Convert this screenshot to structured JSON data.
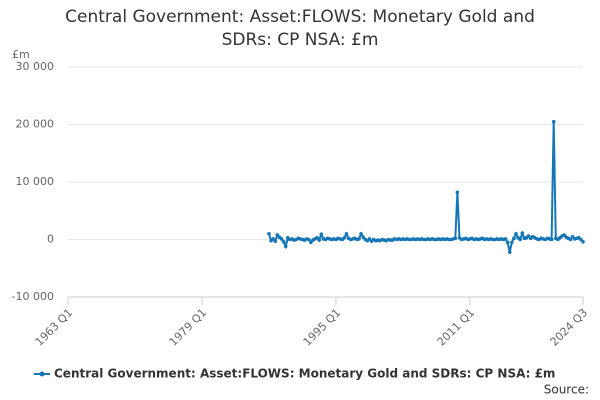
{
  "chart_data": {
    "type": "line",
    "title": "Central Government: Asset:FLOWS: Monetary Gold and SDRs: CP NSA: £m",
    "y_unit": "£m",
    "source": "Source:",
    "xlim": [
      "1963 Q1",
      "2024 Q3"
    ],
    "xticks": [
      "1963 Q1",
      "1979 Q1",
      "1995 Q1",
      "2011 Q1",
      "2024 Q3"
    ],
    "ylim": [
      -10000,
      30000
    ],
    "yticks": [
      {
        "value": -10000,
        "label": "-10 000"
      },
      0,
      {
        "value": 10000,
        "label": "10 000"
      },
      {
        "value": 20000,
        "label": "20 000"
      },
      {
        "value": 30000,
        "label": "30 000"
      }
    ],
    "grid": true,
    "legend": "bottom",
    "x": [
      "1987 Q1",
      "1987 Q2",
      "1987 Q3",
      "1987 Q4",
      "1988 Q1",
      "1988 Q2",
      "1988 Q3",
      "1988 Q4",
      "1989 Q1",
      "1989 Q2",
      "1989 Q3",
      "1989 Q4",
      "1990 Q1",
      "1990 Q2",
      "1990 Q3",
      "1990 Q4",
      "1991 Q1",
      "1991 Q2",
      "1991 Q3",
      "1991 Q4",
      "1992 Q1",
      "1992 Q2",
      "1992 Q3",
      "1992 Q4",
      "1993 Q1",
      "1993 Q2",
      "1993 Q3",
      "1993 Q4",
      "1994 Q1",
      "1994 Q2",
      "1994 Q3",
      "1994 Q4",
      "1995 Q1",
      "1995 Q2",
      "1995 Q3",
      "1995 Q4",
      "1996 Q1",
      "1996 Q2",
      "1996 Q3",
      "1996 Q4",
      "1997 Q1",
      "1997 Q2",
      "1997 Q3",
      "1997 Q4",
      "1998 Q1",
      "1998 Q2",
      "1998 Q3",
      "1998 Q4",
      "1999 Q1",
      "1999 Q2",
      "1999 Q3",
      "1999 Q4",
      "2000 Q1",
      "2000 Q2",
      "2000 Q3",
      "2000 Q4",
      "2001 Q1",
      "2001 Q2",
      "2001 Q3",
      "2001 Q4",
      "2002 Q1",
      "2002 Q2",
      "2002 Q3",
      "2002 Q4",
      "2003 Q1",
      "2003 Q2",
      "2003 Q3",
      "2003 Q4",
      "2004 Q1",
      "2004 Q2",
      "2004 Q3",
      "2004 Q4",
      "2005 Q1",
      "2005 Q2",
      "2005 Q3",
      "2005 Q4",
      "2006 Q1",
      "2006 Q2",
      "2006 Q3",
      "2006 Q4",
      "2007 Q1",
      "2007 Q2",
      "2007 Q3",
      "2007 Q4",
      "2008 Q1",
      "2008 Q2",
      "2008 Q3",
      "2008 Q4",
      "2009 Q1",
      "2009 Q2",
      "2009 Q3",
      "2009 Q4",
      "2010 Q1",
      "2010 Q2",
      "2010 Q3",
      "2010 Q4",
      "2011 Q1",
      "2011 Q2",
      "2011 Q3",
      "2011 Q4",
      "2012 Q1",
      "2012 Q2",
      "2012 Q3",
      "2012 Q4",
      "2013 Q1",
      "2013 Q2",
      "2013 Q3",
      "2013 Q4",
      "2014 Q1",
      "2014 Q2",
      "2014 Q3",
      "2014 Q4",
      "2015 Q1",
      "2015 Q2",
      "2015 Q3",
      "2015 Q4",
      "2016 Q1",
      "2016 Q2",
      "2016 Q3",
      "2016 Q4",
      "2017 Q1",
      "2017 Q2",
      "2017 Q3",
      "2017 Q4",
      "2018 Q1",
      "2018 Q2",
      "2018 Q3",
      "2018 Q4",
      "2019 Q1",
      "2019 Q2",
      "2019 Q3",
      "2019 Q4",
      "2020 Q1",
      "2020 Q2",
      "2020 Q3",
      "2020 Q4",
      "2021 Q1",
      "2021 Q2",
      "2021 Q3",
      "2021 Q4",
      "2022 Q1",
      "2022 Q2",
      "2022 Q3",
      "2022 Q4",
      "2023 Q1",
      "2023 Q2",
      "2023 Q3",
      "2023 Q4",
      "2024 Q1",
      "2024 Q2",
      "2024 Q3"
    ],
    "series": [
      {
        "name": "Central Government: Asset:FLOWS: Monetary Gold and SDRs: CP NSA: £m",
        "color": "#1476b6",
        "values": [
          1000,
          -200,
          100,
          -300,
          800,
          400,
          100,
          -400,
          -1200,
          300,
          0,
          100,
          -100,
          0,
          200,
          100,
          0,
          -100,
          100,
          0,
          -500,
          -100,
          100,
          300,
          -100,
          900,
          100,
          0,
          200,
          100,
          0,
          100,
          0,
          200,
          100,
          0,
          300,
          1000,
          200,
          0,
          100,
          200,
          0,
          100,
          1000,
          400,
          0,
          -200,
          100,
          -300,
          0,
          -200,
          -100,
          -200,
          0,
          -100,
          -200,
          0,
          -100,
          -100,
          100,
          0,
          100,
          0,
          100,
          0,
          100,
          0,
          0,
          100,
          0,
          100,
          0,
          100,
          0,
          0,
          100,
          0,
          100,
          0,
          0,
          100,
          0,
          100,
          0,
          100,
          0,
          0,
          100,
          200,
          8200,
          300,
          0,
          100,
          200,
          0,
          100,
          200,
          0,
          100,
          0,
          100,
          200,
          0,
          100,
          0,
          100,
          0,
          0,
          100,
          0,
          100,
          0,
          100,
          -500,
          -2200,
          -500,
          200,
          1000,
          300,
          0,
          1100,
          200,
          300,
          600,
          200,
          500,
          300,
          100,
          0,
          200,
          100,
          0,
          200,
          100,
          0,
          20500,
          200,
          0,
          300,
          600,
          800,
          400,
          200,
          0,
          500,
          100,
          200,
          300,
          0,
          -400
        ]
      }
    ]
  }
}
